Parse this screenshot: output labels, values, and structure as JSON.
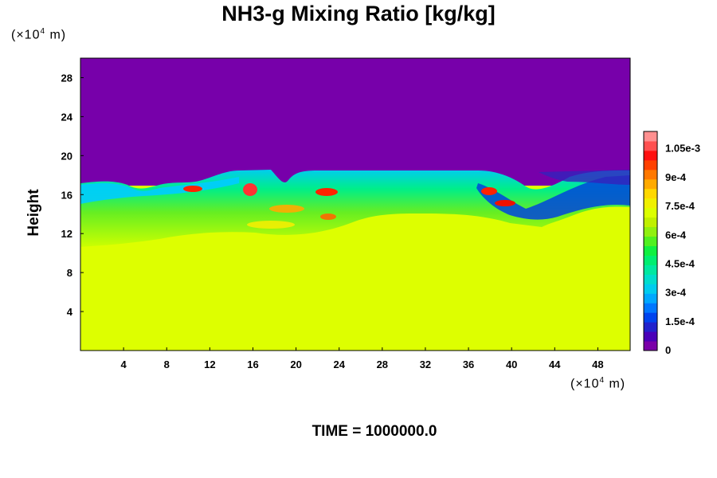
{
  "chart_data": {
    "type": "heatmap",
    "title": "NH3-g Mixing Ratio [kg/kg]",
    "xlabel": "",
    "ylabel": "Height",
    "x_unit_prefix": "(×10",
    "x_unit_exp": "4",
    "x_unit_suffix": " m)",
    "y_unit_prefix": "(×10",
    "y_unit_exp": "4",
    "y_unit_suffix": " m)",
    "xlim": [
      0,
      51
    ],
    "ylim": [
      0,
      30
    ],
    "x_ticks": [
      4,
      8,
      12,
      16,
      20,
      24,
      28,
      32,
      36,
      40,
      44,
      48
    ],
    "y_ticks": [
      4,
      8,
      12,
      16,
      20,
      24,
      28
    ],
    "colorbar": {
      "range": [
        0,
        0.00114
      ],
      "tick_values": [
        0,
        0.00015,
        0.0003,
        0.00045,
        0.0006,
        0.00075,
        0.0009,
        0.00105
      ],
      "tick_labels": [
        "0",
        "1.5e-4",
        "3e-4",
        "4.5e-4",
        "6e-4",
        "7.5e-4",
        "9e-4",
        "1.05e-3"
      ],
      "colors": [
        "#7a00a8",
        "#4a00b8",
        "#2222cc",
        "#0044ee",
        "#0077ff",
        "#00a8ff",
        "#00ccee",
        "#00ddcc",
        "#00e8a0",
        "#00ee70",
        "#10f040",
        "#50f020",
        "#90f010",
        "#c0f000",
        "#dcff00",
        "#f0f000",
        "#ffd800",
        "#ffaa00",
        "#ff7800",
        "#ff4000",
        "#ff1010",
        "#ff5050",
        "#ff9090"
      ]
    },
    "time_label": "TIME = 1000000.0"
  },
  "colors": {
    "upper": "#7700aa",
    "lower": "#ddff00",
    "band_green": "#44ee33",
    "cyan": "#00ddee",
    "red": "#ff2200"
  }
}
